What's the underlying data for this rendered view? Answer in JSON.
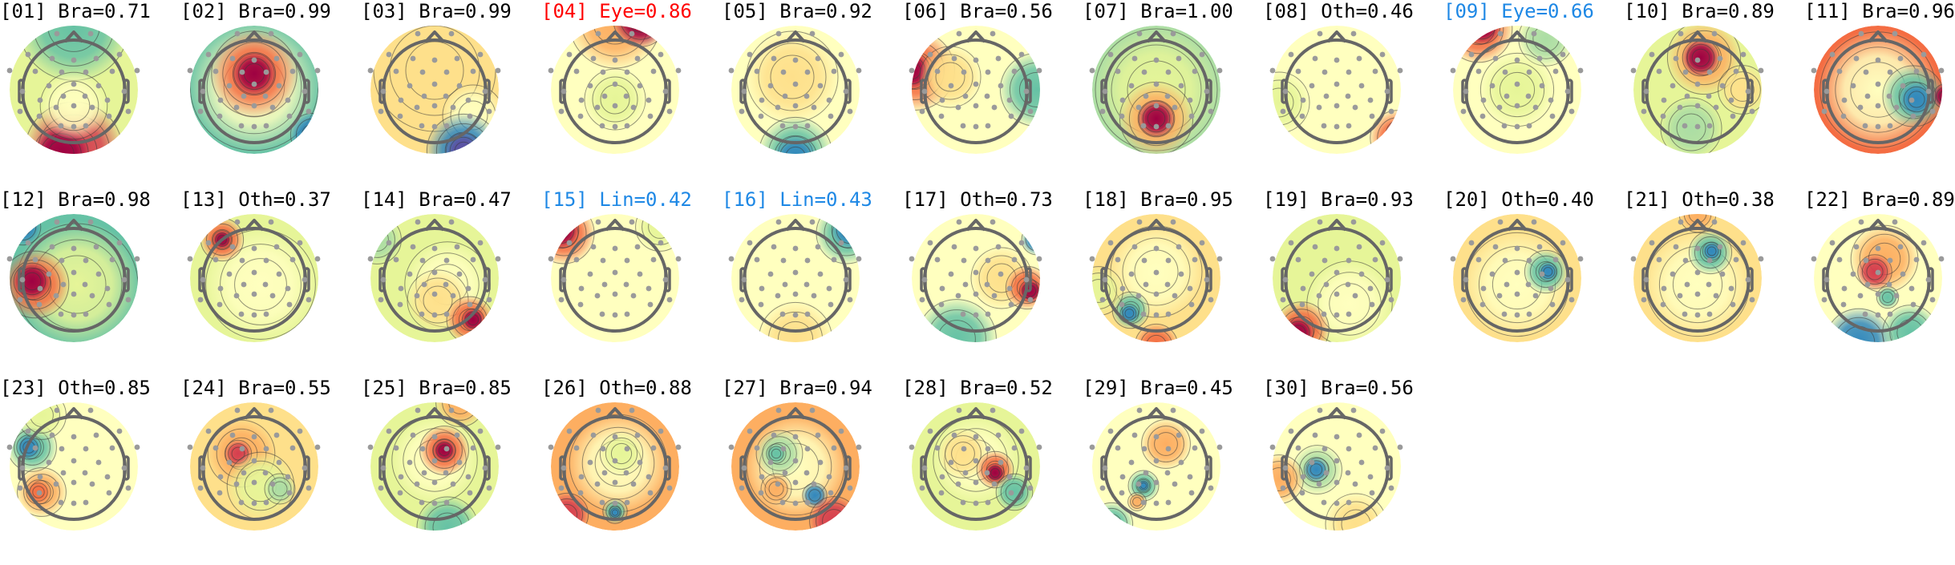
{
  "chart_data": {
    "type": "heatmap",
    "title": "",
    "description": "Grid of 30 scalp topographic maps (ICA components); each titled [index] Category=score",
    "colormap": [
      "#5e4fa2",
      "#3288bd",
      "#66c2a5",
      "#abdda4",
      "#e6f598",
      "#ffffbf",
      "#fee08b",
      "#fdae61",
      "#f46d43",
      "#d53e4f",
      "#9e0142"
    ],
    "layout": {
      "columns": 11,
      "rows": 3,
      "col_spacing": 225,
      "row_spacing": 235
    },
    "label_colors": {
      "default": "#000000",
      "flagged_eye": "#ff0000",
      "flagged_other": "#1e88e5"
    },
    "components": [
      {
        "index": "01",
        "category": "Bra",
        "score": "0.71",
        "color": "#000000",
        "base": "#e6f598",
        "blobs": [
          [
            0.0,
            -1.0,
            0.9,
            "#66c2a5"
          ],
          [
            0.0,
            0.95,
            0.8,
            "#d53e4f"
          ],
          [
            -0.2,
            1.0,
            0.45,
            "#9e0142"
          ],
          [
            0.0,
            0.25,
            0.55,
            "#ffffbf"
          ]
        ]
      },
      {
        "index": "02",
        "category": "Bra",
        "score": "0.99",
        "color": "#000000",
        "base": "#66c2a5",
        "blobs": [
          [
            0.0,
            -0.05,
            1.05,
            "#ffffbf"
          ],
          [
            0.0,
            -0.25,
            0.7,
            "#f46d43"
          ],
          [
            0.0,
            -0.25,
            0.35,
            "#9e0142"
          ],
          [
            0.9,
            0.7,
            0.35,
            "#3288bd"
          ]
        ]
      },
      {
        "index": "03",
        "category": "Bra",
        "score": "0.99",
        "color": "#000000",
        "base": "#fee08b",
        "blobs": [
          [
            0.0,
            -0.3,
            1.0,
            "#fee08b"
          ],
          [
            0.6,
            0.4,
            0.5,
            "#ffffbf"
          ],
          [
            0.45,
            0.95,
            0.6,
            "#3288bd"
          ],
          [
            0.45,
            0.95,
            0.3,
            "#5e4fa2"
          ]
        ]
      },
      {
        "index": "04",
        "category": "Eye",
        "score": "0.86",
        "color": "#ff0000",
        "base": "#ffffbf",
        "blobs": [
          [
            0.0,
            -1.05,
            0.75,
            "#fdae61"
          ],
          [
            0.4,
            -1.1,
            0.45,
            "#9e0142"
          ],
          [
            0.0,
            0.15,
            0.5,
            "#e6f598"
          ]
        ]
      },
      {
        "index": "05",
        "category": "Bra",
        "score": "0.92",
        "color": "#000000",
        "base": "#ffffbf",
        "blobs": [
          [
            -0.05,
            -0.2,
            0.75,
            "#fee08b"
          ],
          [
            0.0,
            1.0,
            0.6,
            "#66c2a5"
          ],
          [
            0.0,
            1.05,
            0.35,
            "#3288bd"
          ]
        ]
      },
      {
        "index": "06",
        "category": "Bra",
        "score": "0.56",
        "color": "#000000",
        "base": "#ffffbf",
        "blobs": [
          [
            -0.95,
            -0.3,
            0.65,
            "#f46d43"
          ],
          [
            -1.0,
            -0.3,
            0.3,
            "#9e0142"
          ],
          [
            -0.4,
            -0.2,
            0.5,
            "#fee08b"
          ],
          [
            0.95,
            0.0,
            0.6,
            "#66c2a5"
          ]
        ]
      },
      {
        "index": "07",
        "category": "Bra",
        "score": "1.00",
        "color": "#000000",
        "base": "#abdda4",
        "blobs": [
          [
            0.0,
            0.0,
            1.0,
            "#e6f598"
          ],
          [
            0.0,
            0.45,
            0.6,
            "#fdae61"
          ],
          [
            0.0,
            0.45,
            0.3,
            "#9e0142"
          ]
        ]
      },
      {
        "index": "08",
        "category": "Oth",
        "score": "0.46",
        "color": "#000000",
        "base": "#ffffbf",
        "blobs": [
          [
            -0.9,
            0.2,
            0.5,
            "#e6f598"
          ],
          [
            0.95,
            0.75,
            0.45,
            "#f46d43"
          ],
          [
            1.0,
            0.7,
            0.25,
            "#9e0142"
          ]
        ]
      },
      {
        "index": "09",
        "category": "Eye",
        "score": "0.66",
        "color": "#1e88e5",
        "base": "#ffffbf",
        "blobs": [
          [
            -0.6,
            -0.95,
            0.55,
            "#f46d43"
          ],
          [
            -0.55,
            -1.0,
            0.3,
            "#9e0142"
          ],
          [
            0.45,
            -0.8,
            0.45,
            "#abdda4"
          ],
          [
            0.0,
            0.0,
            0.6,
            "#e6f598"
          ]
        ]
      },
      {
        "index": "10",
        "category": "Bra",
        "score": "0.89",
        "color": "#000000",
        "base": "#e6f598",
        "blobs": [
          [
            0.1,
            -0.5,
            0.6,
            "#fdae61"
          ],
          [
            0.05,
            -0.5,
            0.3,
            "#9e0142"
          ],
          [
            -0.1,
            0.6,
            0.5,
            "#abdda4"
          ],
          [
            0.7,
            0.0,
            0.4,
            "#fee08b"
          ]
        ]
      },
      {
        "index": "11",
        "category": "Bra",
        "score": "0.96",
        "color": "#000000",
        "base": "#f46d43",
        "blobs": [
          [
            0.0,
            0.0,
            0.95,
            "#ffffbf"
          ],
          [
            0.55,
            0.1,
            0.5,
            "#66c2a5"
          ],
          [
            0.6,
            0.15,
            0.28,
            "#3288bd"
          ],
          [
            1.05,
            0.1,
            0.2,
            "#9e0142"
          ]
        ]
      },
      {
        "index": "12",
        "category": "Bra",
        "score": "0.98",
        "color": "#000000",
        "base": "#66c2a5",
        "blobs": [
          [
            0.05,
            0.1,
            1.0,
            "#e6f598"
          ],
          [
            -0.6,
            0.1,
            0.55,
            "#f46d43"
          ],
          [
            -0.65,
            0.05,
            0.3,
            "#9e0142"
          ],
          [
            -0.8,
            -0.8,
            0.3,
            "#3288bd"
          ]
        ]
      },
      {
        "index": "13",
        "category": "Oth",
        "score": "0.37",
        "color": "#000000",
        "base": "#e6f598",
        "blobs": [
          [
            0.1,
            0.1,
            0.9,
            "#ffffbf"
          ],
          [
            -0.5,
            -0.6,
            0.35,
            "#f46d43"
          ],
          [
            -0.5,
            -0.6,
            0.15,
            "#9e0142"
          ]
        ]
      },
      {
        "index": "14",
        "category": "Bra",
        "score": "0.47",
        "color": "#000000",
        "base": "#e6f598",
        "blobs": [
          [
            0.2,
            0.1,
            0.7,
            "#ffffbf"
          ],
          [
            0.05,
            0.35,
            0.5,
            "#fee08b"
          ],
          [
            0.55,
            0.65,
            0.38,
            "#f46d43"
          ],
          [
            0.6,
            0.65,
            0.18,
            "#9e0142"
          ],
          [
            -0.9,
            -0.6,
            0.4,
            "#abdda4"
          ]
        ]
      },
      {
        "index": "15",
        "category": "Lin",
        "score": "0.42",
        "color": "#1e88e5",
        "base": "#ffffbf",
        "blobs": [
          [
            -0.8,
            -0.7,
            0.5,
            "#f46d43"
          ],
          [
            -0.85,
            -0.75,
            0.3,
            "#9e0142"
          ],
          [
            0.7,
            -0.8,
            0.4,
            "#e6f598"
          ]
        ]
      },
      {
        "index": "16",
        "category": "Lin",
        "score": "0.43",
        "color": "#1e88e5",
        "base": "#ffffbf",
        "blobs": [
          [
            0.8,
            -0.7,
            0.5,
            "#66c2a5"
          ],
          [
            0.85,
            -0.75,
            0.3,
            "#3288bd"
          ],
          [
            0.0,
            0.95,
            0.6,
            "#fee08b"
          ]
        ]
      },
      {
        "index": "17",
        "category": "Oth",
        "score": "0.73",
        "color": "#000000",
        "base": "#ffffbf",
        "blobs": [
          [
            0.4,
            0.0,
            0.5,
            "#fee08b"
          ],
          [
            0.8,
            0.15,
            0.35,
            "#f46d43"
          ],
          [
            0.85,
            0.2,
            0.18,
            "#9e0142"
          ],
          [
            -0.3,
            0.95,
            0.65,
            "#66c2a5"
          ],
          [
            0.95,
            -0.6,
            0.25,
            "#3288bd"
          ]
        ]
      },
      {
        "index": "18",
        "category": "Bra",
        "score": "0.95",
        "color": "#000000",
        "base": "#fee08b",
        "blobs": [
          [
            0.0,
            -0.1,
            0.75,
            "#ffffbf"
          ],
          [
            -0.4,
            0.5,
            0.3,
            "#66c2a5"
          ],
          [
            -0.42,
            0.55,
            0.15,
            "#3288bd"
          ],
          [
            0.0,
            1.05,
            0.35,
            "#f46d43"
          ],
          [
            -0.9,
            0.2,
            0.4,
            "#e6f598"
          ]
        ]
      },
      {
        "index": "19",
        "category": "Bra",
        "score": "0.93",
        "color": "#000000",
        "base": "#e6f598",
        "blobs": [
          [
            0.2,
            0.4,
            0.7,
            "#ffffbf"
          ],
          [
            -0.55,
            0.8,
            0.45,
            "#f46d43"
          ],
          [
            -0.6,
            0.85,
            0.25,
            "#9e0142"
          ]
        ]
      },
      {
        "index": "20",
        "category": "Oth",
        "score": "0.40",
        "color": "#000000",
        "base": "#fee08b",
        "blobs": [
          [
            0.0,
            0.1,
            0.85,
            "#ffffbf"
          ],
          [
            0.45,
            -0.1,
            0.35,
            "#66c2a5"
          ],
          [
            0.48,
            -0.1,
            0.15,
            "#3288bd"
          ]
        ]
      },
      {
        "index": "21",
        "category": "Oth",
        "score": "0.38",
        "color": "#000000",
        "base": "#fee08b",
        "blobs": [
          [
            0.0,
            0.1,
            0.85,
            "#ffffbf"
          ],
          [
            0.2,
            -0.4,
            0.35,
            "#66c2a5"
          ],
          [
            0.22,
            -0.42,
            0.15,
            "#3288bd"
          ],
          [
            0.0,
            -1.0,
            0.3,
            "#fdae61"
          ]
        ]
      },
      {
        "index": "22",
        "category": "Bra",
        "score": "0.89",
        "color": "#000000",
        "base": "#ffffbf",
        "blobs": [
          [
            0.1,
            -0.3,
            0.55,
            "#fdae61"
          ],
          [
            -0.05,
            -0.1,
            0.28,
            "#d53e4f"
          ],
          [
            0.15,
            0.3,
            0.18,
            "#66c2a5"
          ],
          [
            -0.3,
            1.0,
            0.55,
            "#3288bd"
          ],
          [
            0.5,
            0.85,
            0.45,
            "#66c2a5"
          ]
        ]
      },
      {
        "index": "23",
        "category": "Oth",
        "score": "0.85",
        "color": "#000000",
        "base": "#ffffbf",
        "blobs": [
          [
            -0.65,
            -0.3,
            0.4,
            "#66c2a5"
          ],
          [
            -0.7,
            -0.3,
            0.2,
            "#3288bd"
          ],
          [
            -0.5,
            0.4,
            0.4,
            "#fdae61"
          ],
          [
            -0.55,
            0.4,
            0.2,
            "#f46d43"
          ],
          [
            -0.5,
            -0.8,
            0.4,
            "#e6f598"
          ]
        ]
      },
      {
        "index": "24",
        "category": "Bra",
        "score": "0.55",
        "color": "#000000",
        "base": "#fee08b",
        "blobs": [
          [
            -0.2,
            -0.2,
            0.55,
            "#fdae61"
          ],
          [
            -0.25,
            -0.2,
            0.22,
            "#d53e4f"
          ],
          [
            0.1,
            0.3,
            0.55,
            "#e6f598"
          ],
          [
            0.4,
            0.35,
            0.25,
            "#abdda4"
          ]
        ]
      },
      {
        "index": "25",
        "category": "Bra",
        "score": "0.85",
        "color": "#000000",
        "base": "#e6f598",
        "blobs": [
          [
            0.0,
            -0.1,
            0.7,
            "#ffffbf"
          ],
          [
            0.15,
            -0.25,
            0.4,
            "#f46d43"
          ],
          [
            0.15,
            -0.25,
            0.18,
            "#9e0142"
          ],
          [
            0.4,
            -1.0,
            0.4,
            "#fdae61"
          ],
          [
            0.2,
            0.95,
            0.5,
            "#66c2a5"
          ]
        ]
      },
      {
        "index": "26",
        "category": "Oth",
        "score": "0.88",
        "color": "#000000",
        "base": "#fdae61",
        "blobs": [
          [
            0.05,
            -0.05,
            0.8,
            "#ffffbf"
          ],
          [
            0.1,
            -0.2,
            0.35,
            "#e6f598"
          ],
          [
            0.0,
            0.7,
            0.2,
            "#66c2a5"
          ],
          [
            0.0,
            0.72,
            0.1,
            "#3288bd"
          ],
          [
            -0.75,
            0.75,
            0.35,
            "#d53e4f"
          ]
        ]
      },
      {
        "index": "27",
        "category": "Bra",
        "score": "0.94",
        "color": "#000000",
        "base": "#fdae61",
        "blobs": [
          [
            0.0,
            0.0,
            0.8,
            "#ffffbf"
          ],
          [
            -0.25,
            -0.2,
            0.38,
            "#abdda4"
          ],
          [
            -0.3,
            -0.2,
            0.16,
            "#66c2a5"
          ],
          [
            0.3,
            0.45,
            0.2,
            "#3288bd"
          ],
          [
            -0.3,
            0.35,
            0.25,
            "#fdae61"
          ],
          [
            0.6,
            0.85,
            0.4,
            "#d53e4f"
          ]
        ]
      },
      {
        "index": "28",
        "category": "Bra",
        "score": "0.52",
        "color": "#000000",
        "base": "#e6f598",
        "blobs": [
          [
            0.0,
            -0.1,
            0.7,
            "#ffffbf"
          ],
          [
            -0.2,
            -0.2,
            0.4,
            "#fee08b"
          ],
          [
            0.3,
            0.05,
            0.3,
            "#f46d43"
          ],
          [
            0.3,
            0.1,
            0.15,
            "#9e0142"
          ],
          [
            0.6,
            0.4,
            0.3,
            "#66c2a5"
          ]
        ]
      },
      {
        "index": "29",
        "category": "Bra",
        "score": "0.45",
        "color": "#000000",
        "base": "#ffffbf",
        "blobs": [
          [
            0.15,
            -0.35,
            0.4,
            "#fdae61"
          ],
          [
            -0.2,
            0.3,
            0.25,
            "#66c2a5"
          ],
          [
            -0.2,
            0.3,
            0.1,
            "#3288bd"
          ],
          [
            -0.3,
            0.55,
            0.15,
            "#fdae61"
          ],
          [
            -0.7,
            0.9,
            0.35,
            "#66c2a5"
          ]
        ]
      },
      {
        "index": "30",
        "category": "Bra",
        "score": "0.56",
        "color": "#000000",
        "base": "#ffffbf",
        "blobs": [
          [
            -0.3,
            0.05,
            0.4,
            "#abdda4"
          ],
          [
            -0.32,
            0.05,
            0.2,
            "#3288bd"
          ],
          [
            -0.9,
            0.2,
            0.4,
            "#fdae61"
          ],
          [
            0.3,
            0.9,
            0.5,
            "#fee08b"
          ]
        ]
      }
    ],
    "electrodes": [
      [
        -21,
        -70
      ],
      [
        21,
        -70
      ],
      [
        -57,
        -44
      ],
      [
        -27,
        -39
      ],
      [
        0,
        -37
      ],
      [
        28,
        -39
      ],
      [
        57,
        -44
      ],
      [
        -80,
        -24
      ],
      [
        -48,
        -23
      ],
      [
        -15,
        -22
      ],
      [
        15,
        -22
      ],
      [
        48,
        -23
      ],
      [
        79,
        -24
      ],
      [
        -64,
        2
      ],
      [
        -31,
        -5
      ],
      [
        0,
        -7
      ],
      [
        31,
        -5
      ],
      [
        63,
        2
      ],
      [
        -42,
        13
      ],
      [
        -13,
        8
      ],
      [
        14,
        8
      ],
      [
        42,
        13
      ],
      [
        -67,
        27
      ],
      [
        -22,
        22
      ],
      [
        0,
        20
      ],
      [
        23,
        22
      ],
      [
        68,
        27
      ],
      [
        -43,
        33
      ],
      [
        44,
        33
      ],
      [
        -16,
        45
      ],
      [
        0,
        46
      ],
      [
        15,
        45
      ]
    ]
  }
}
